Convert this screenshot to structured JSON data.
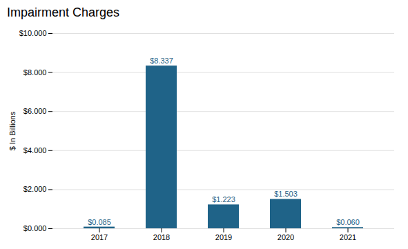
{
  "chart_data": {
    "type": "bar",
    "title": "Impairment Charges",
    "ylabel": "$ In Billions",
    "categories": [
      "2017",
      "2018",
      "2019",
      "2020",
      "2021"
    ],
    "values": [
      0.085,
      8.337,
      1.223,
      1.503,
      0.06
    ],
    "value_labels": [
      "$0.085",
      "$8.337",
      "$1.223",
      "$1.503",
      "$0.060"
    ],
    "data_labels": true,
    "color": "#1f6388",
    "ylim": [
      0,
      10.0
    ],
    "yticks": [
      {
        "value": 0.0,
        "label": "$0.000"
      },
      {
        "value": 2.0,
        "label": "$2.000"
      },
      {
        "value": 4.0,
        "label": "$4.000"
      },
      {
        "value": 6.0,
        "label": "$6.000"
      },
      {
        "value": 8.0,
        "label": "$8.000"
      },
      {
        "value": 10.0,
        "label": "$10.000"
      }
    ],
    "grid": true
  }
}
